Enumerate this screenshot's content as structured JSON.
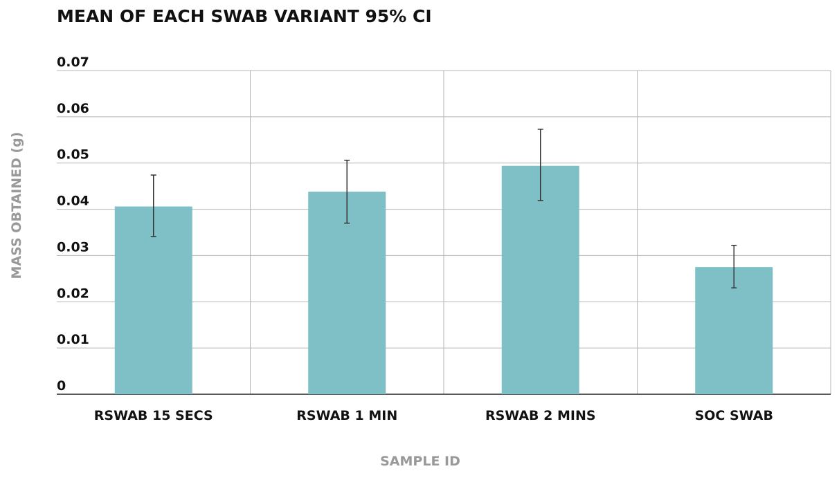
{
  "chart_data": {
    "type": "bar",
    "title": "MEAN OF EACH SWAB VARIANT 95% CI",
    "xlabel": "SAMPLE ID",
    "ylabel": "MASS OBTAINED (g)",
    "categories": [
      "RSWAB 15 SECS",
      "RSWAB 1 MIN",
      "RSWAB 2 MINS",
      "SOC SWAB"
    ],
    "values": [
      0.0406,
      0.0438,
      0.0494,
      0.0275
    ],
    "error_low": [
      0.0341,
      0.037,
      0.0419,
      0.023
    ],
    "error_high": [
      0.0474,
      0.0506,
      0.0573,
      0.0322
    ],
    "ylim": [
      0,
      0.07
    ],
    "yticks": [
      0,
      0.01,
      0.02,
      0.03,
      0.04,
      0.05,
      0.06,
      0.07
    ],
    "ytick_labels": [
      "0",
      "0.01",
      "0.02",
      "0.03",
      "0.04",
      "0.05",
      "0.06",
      "0.07"
    ],
    "grid": true,
    "bar_color": "#7fbfc6",
    "error_bar_color": "#333333"
  }
}
